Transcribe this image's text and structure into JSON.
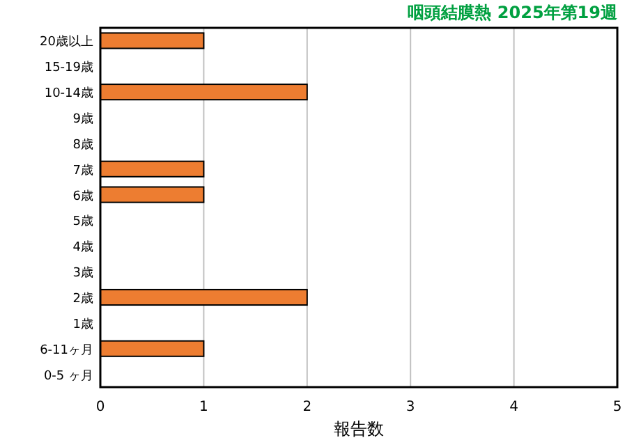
{
  "chart_data": {
    "type": "bar",
    "orientation": "horizontal",
    "title": "咽頭結膜熱 2025年第19週",
    "xlabel": "報告数",
    "categories": [
      "20歳以上",
      "15-19歳",
      "10-14歳",
      "9歳",
      "8歳",
      "7歳",
      "6歳",
      "5歳",
      "4歳",
      "3歳",
      "2歳",
      "1歳",
      "6-11ヶ月",
      "0-5 ヶ月"
    ],
    "values": [
      1,
      0,
      2,
      0,
      0,
      1,
      1,
      0,
      0,
      0,
      2,
      0,
      1,
      0
    ],
    "color": "#ed7d31",
    "xlim": [
      0,
      5
    ],
    "xticks": [
      0,
      1,
      2,
      3,
      4,
      5
    ],
    "grid": "x"
  }
}
